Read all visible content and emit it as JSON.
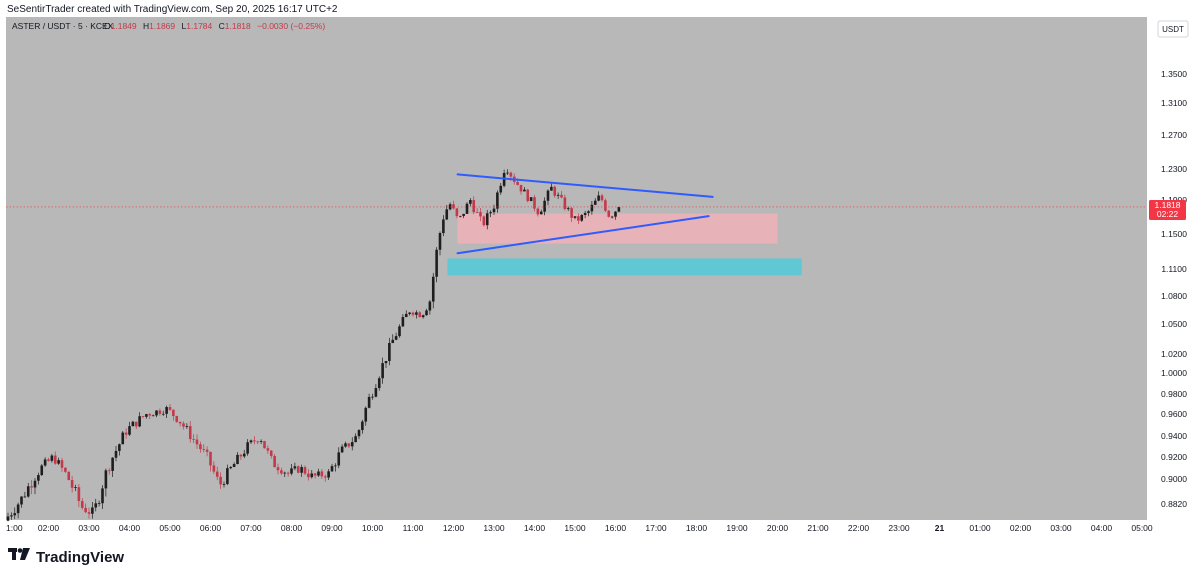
{
  "header": {
    "credit": "SeSentirTrader created with TradingView.com, Sep 20, 2025 16:17 UTC+2"
  },
  "legend": {
    "symbol": "ASTER / USDT · 5 · KCEX",
    "o_label": "O",
    "o_value": "1.1849",
    "h_label": "H",
    "h_value": "1.1869",
    "l_label": "L",
    "l_value": "1.1784",
    "c_label": "C",
    "c_value": "1.1818",
    "change": "−0.0030 (−0.25%)"
  },
  "currency_badge": "USDT",
  "price_tag": {
    "value": "1.1818",
    "countdown": "02:22"
  },
  "footer": {
    "brand": "TradingView"
  },
  "colors": {
    "background": "#b8b8b8",
    "up_candle": "#1e1e1e",
    "down_candle": "#c4394a",
    "trendline": "#2f5bff",
    "supply_zone": "#eeb2b7",
    "demand_zone": "#5bc8d6",
    "price_tag": "#f23645"
  },
  "chart_data": {
    "type": "candlestick",
    "title": "",
    "price_axis": {
      "ticks": [
        "1.3500",
        "1.3100",
        "1.2700",
        "1.2300",
        "1.1900",
        "1.1500",
        "1.1100",
        "1.0800",
        "1.0500",
        "1.0200",
        "1.0000",
        "0.9800",
        "0.9600",
        "0.9400",
        "0.9200",
        "0.9000",
        "0.8820"
      ]
    },
    "time_axis": {
      "ticks": [
        "1:00",
        "02:00",
        "03:00",
        "04:00",
        "05:00",
        "06:00",
        "07:00",
        "08:00",
        "09:00",
        "10:00",
        "11:00",
        "12:00",
        "13:00",
        "14:00",
        "15:00",
        "16:00",
        "17:00",
        "18:00",
        "19:00",
        "20:00",
        "21:00",
        "22:00",
        "23:00",
        "21",
        "01:00",
        "02:00",
        "03:00",
        "04:00",
        "05:00"
      ]
    },
    "last_price": 1.1818,
    "price_path": [
      {
        "t": 1.0,
        "p": 0.87
      },
      {
        "t": 1.4,
        "p": 0.885
      },
      {
        "t": 1.9,
        "p": 0.91
      },
      {
        "t": 2.2,
        "p": 0.92
      },
      {
        "t": 2.5,
        "p": 0.905
      },
      {
        "t": 2.9,
        "p": 0.88
      },
      {
        "t": 3.2,
        "p": 0.875
      },
      {
        "t": 3.6,
        "p": 0.915
      },
      {
        "t": 4.0,
        "p": 0.945
      },
      {
        "t": 4.5,
        "p": 0.96
      },
      {
        "t": 5.0,
        "p": 0.965
      },
      {
        "t": 5.3,
        "p": 0.955
      },
      {
        "t": 5.6,
        "p": 0.94
      },
      {
        "t": 6.0,
        "p": 0.92
      },
      {
        "t": 6.3,
        "p": 0.895
      },
      {
        "t": 6.6,
        "p": 0.91
      },
      {
        "t": 7.0,
        "p": 0.93
      },
      {
        "t": 7.3,
        "p": 0.94
      },
      {
        "t": 7.6,
        "p": 0.915
      },
      {
        "t": 8.0,
        "p": 0.905
      },
      {
        "t": 8.3,
        "p": 0.91
      },
      {
        "t": 8.6,
        "p": 0.902
      },
      {
        "t": 9.0,
        "p": 0.905
      },
      {
        "t": 9.3,
        "p": 0.925
      },
      {
        "t": 9.7,
        "p": 0.94
      },
      {
        "t": 10.0,
        "p": 0.975
      },
      {
        "t": 10.3,
        "p": 1.005
      },
      {
        "t": 10.6,
        "p": 1.035
      },
      {
        "t": 11.0,
        "p": 1.065
      },
      {
        "t": 11.3,
        "p": 1.06
      },
      {
        "t": 11.5,
        "p": 1.075
      },
      {
        "t": 11.7,
        "p": 1.14
      },
      {
        "t": 11.85,
        "p": 1.175
      },
      {
        "t": 12.0,
        "p": 1.185
      },
      {
        "t": 12.2,
        "p": 1.165
      },
      {
        "t": 12.5,
        "p": 1.19
      },
      {
        "t": 12.8,
        "p": 1.16
      },
      {
        "t": 13.1,
        "p": 1.185
      },
      {
        "t": 13.35,
        "p": 1.235
      },
      {
        "t": 13.6,
        "p": 1.215
      },
      {
        "t": 13.9,
        "p": 1.195
      },
      {
        "t": 14.2,
        "p": 1.175
      },
      {
        "t": 14.5,
        "p": 1.205
      },
      {
        "t": 14.8,
        "p": 1.185
      },
      {
        "t": 15.1,
        "p": 1.165
      },
      {
        "t": 15.4,
        "p": 1.175
      },
      {
        "t": 15.7,
        "p": 1.195
      },
      {
        "t": 15.95,
        "p": 1.17
      },
      {
        "t": 16.15,
        "p": 1.182
      }
    ],
    "trendlines": [
      {
        "name": "upper",
        "from": {
          "t": 12.1,
          "p": 1.223
        },
        "to": {
          "t": 18.4,
          "p": 1.194
        }
      },
      {
        "name": "lower",
        "from": {
          "t": 12.1,
          "p": 1.128
        },
        "to": {
          "t": 18.3,
          "p": 1.171
        }
      }
    ],
    "zones": [
      {
        "name": "supply",
        "t0": 12.1,
        "t1": 20.0,
        "p_top": 1.174,
        "p_bottom": 1.139
      },
      {
        "name": "demand",
        "t0": 11.85,
        "t1": 20.6,
        "p_top": 1.122,
        "p_bottom": 1.103
      }
    ]
  }
}
